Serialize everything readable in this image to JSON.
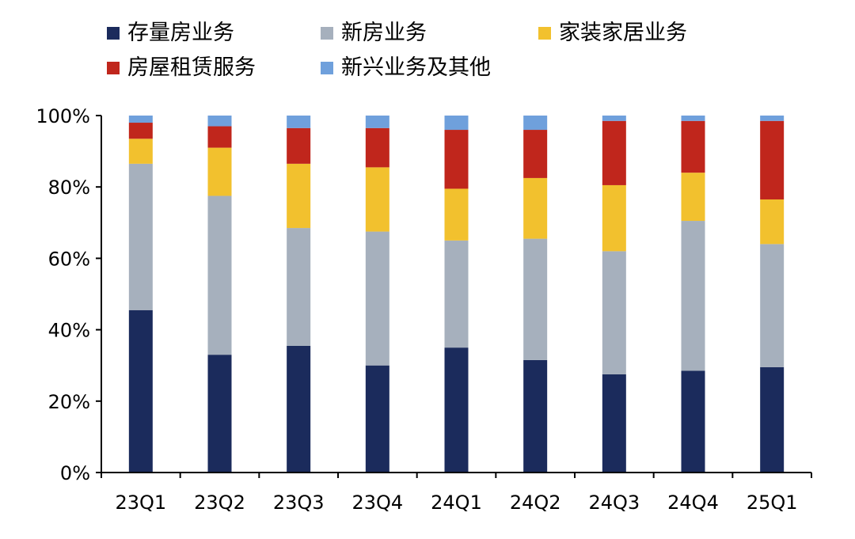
{
  "chart_data": {
    "type": "bar",
    "stacked": true,
    "percent": true,
    "categories": [
      "23Q1",
      "23Q2",
      "23Q3",
      "23Q4",
      "24Q1",
      "24Q2",
      "24Q3",
      "24Q4",
      "25Q1"
    ],
    "series": [
      {
        "name": "存量房业务",
        "color": "#1b2b5c",
        "values": [
          45.5,
          33.0,
          35.5,
          30.0,
          35.0,
          31.5,
          27.5,
          28.5,
          29.5
        ]
      },
      {
        "name": "新房业务",
        "color": "#a6b0bd",
        "values": [
          41.0,
          44.5,
          33.0,
          37.5,
          30.0,
          34.0,
          34.5,
          42.0,
          34.5
        ]
      },
      {
        "name": "家装家居业务",
        "color": "#f2c12e",
        "values": [
          7.0,
          13.5,
          18.0,
          18.0,
          14.5,
          17.0,
          18.5,
          13.5,
          12.5
        ]
      },
      {
        "name": "房屋租赁服务",
        "color": "#c0261c",
        "values": [
          4.5,
          6.0,
          10.0,
          11.0,
          16.5,
          13.5,
          18.0,
          14.5,
          22.0
        ]
      },
      {
        "name": "新兴业务及其他",
        "color": "#6fa0dc",
        "values": [
          2.0,
          3.0,
          3.5,
          3.5,
          4.0,
          4.0,
          1.5,
          1.5,
          1.5
        ]
      }
    ],
    "ylim": [
      0,
      100
    ],
    "yticks": [
      "0%",
      "20%",
      "40%",
      "60%",
      "80%",
      "100%"
    ],
    "legend_position": "top",
    "grid": false
  }
}
